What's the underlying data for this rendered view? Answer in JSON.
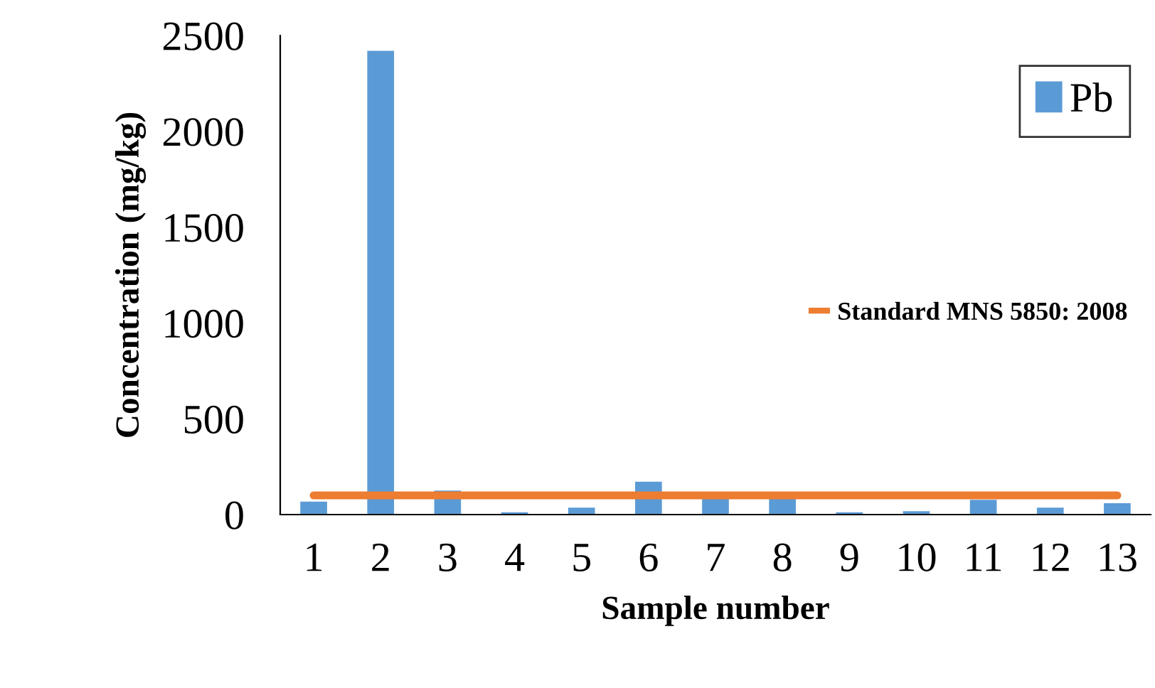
{
  "chart_data": {
    "type": "bar",
    "xlabel": "Sample number",
    "ylabel": "Concentration (mg/kg)",
    "categories": [
      "1",
      "2",
      "3",
      "4",
      "5",
      "6",
      "7",
      "8",
      "9",
      "10",
      "11",
      "12",
      "13"
    ],
    "series": [
      {
        "name": "Pb",
        "color": "#5b9bd5",
        "values": [
          68,
          2420,
          125,
          12,
          36,
          172,
          89,
          89,
          12,
          18,
          77,
          36,
          59
        ]
      },
      {
        "name": "Standard MNS 5850: 2008",
        "type": "line",
        "color": "#ed7d31",
        "values": [
          100,
          100,
          100,
          100,
          100,
          100,
          100,
          100,
          100,
          100,
          100,
          100,
          100
        ]
      }
    ],
    "ylim": [
      0,
      2500
    ],
    "yticks": [
      0,
      500,
      1000,
      1500,
      2000,
      2500
    ],
    "grid": false,
    "legend": "top right"
  }
}
